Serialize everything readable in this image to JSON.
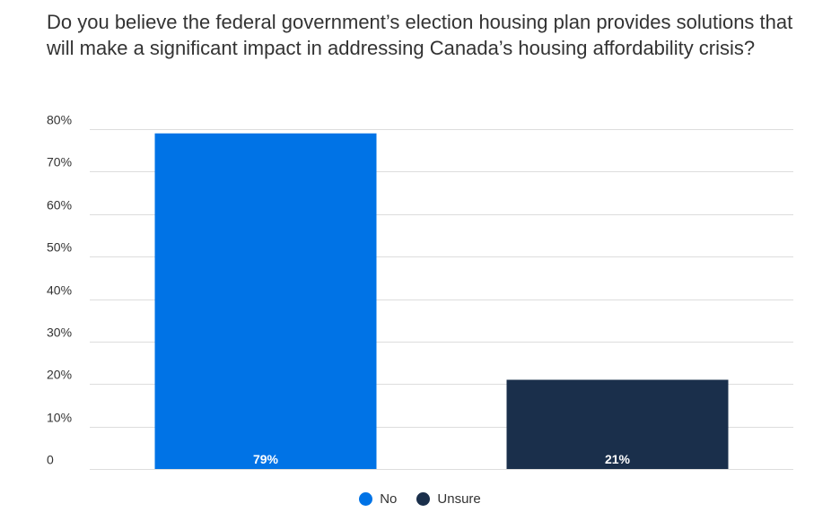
{
  "chart_data": {
    "type": "bar",
    "title": "Do you believe the federal government’s election housing plan provides solutions that will make a significant impact in addressing Canada’s housing affordability crisis?",
    "categories": [
      "No",
      "Unsure"
    ],
    "values": [
      79,
      21
    ],
    "data_labels": [
      "79%",
      "21%"
    ],
    "colors": [
      "#0073e6",
      "#1a2f4b"
    ],
    "ylim": [
      0,
      80
    ],
    "yticks": [
      0,
      10,
      20,
      30,
      40,
      50,
      60,
      70,
      80
    ],
    "ytick_labels": [
      "0",
      "10%",
      "20%",
      "30%",
      "40%",
      "50%",
      "60%",
      "70%",
      "80%"
    ],
    "grid": true,
    "legend_position": "bottom-center",
    "legend": [
      "No",
      "Unsure"
    ]
  }
}
